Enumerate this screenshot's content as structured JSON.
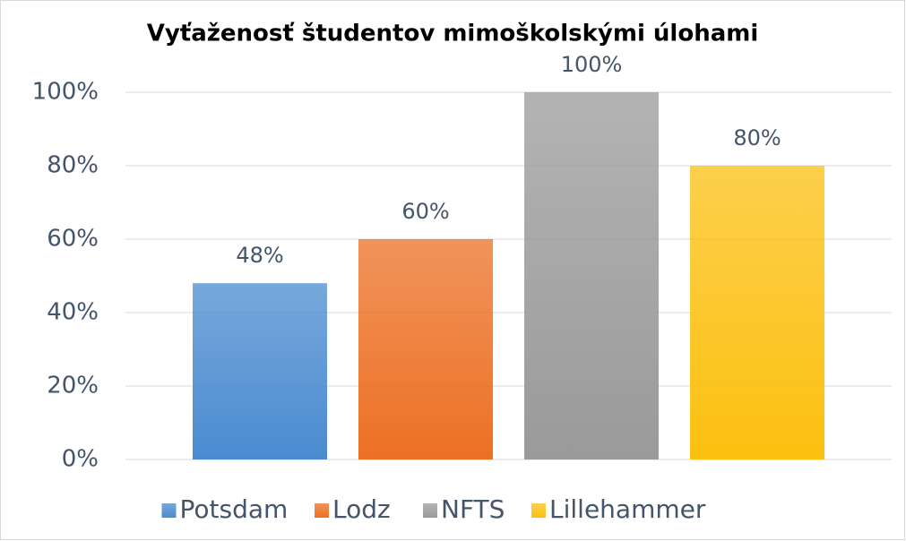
{
  "chart_data": {
    "type": "bar",
    "title": "Vyťaženosť študentov mimoškolskými úlohami",
    "categories": [
      null
    ],
    "series": [
      {
        "name": "Potsdam",
        "color": "#4a8bd0",
        "values": [
          48
        ],
        "value_labels": [
          "48%"
        ]
      },
      {
        "name": "Lodz",
        "color": "#ec7024",
        "values": [
          60
        ],
        "value_labels": [
          "60%"
        ]
      },
      {
        "name": "NFTS",
        "color": "#9a9a9a",
        "values": [
          100
        ],
        "value_labels": [
          "100%"
        ]
      },
      {
        "name": "Lillehammer",
        "color": "#fcc010",
        "values": [
          80
        ],
        "value_labels": [
          "80%"
        ]
      }
    ],
    "ylim": [
      0,
      100
    ],
    "yticks": [
      {
        "value": 0,
        "label": "0%"
      },
      {
        "value": 20,
        "label": "20%"
      },
      {
        "value": 40,
        "label": "40%"
      },
      {
        "value": 60,
        "label": "60%"
      },
      {
        "value": 80,
        "label": "80%"
      },
      {
        "value": 100,
        "label": "100%"
      }
    ],
    "grid": true,
    "legend": "bottom"
  }
}
